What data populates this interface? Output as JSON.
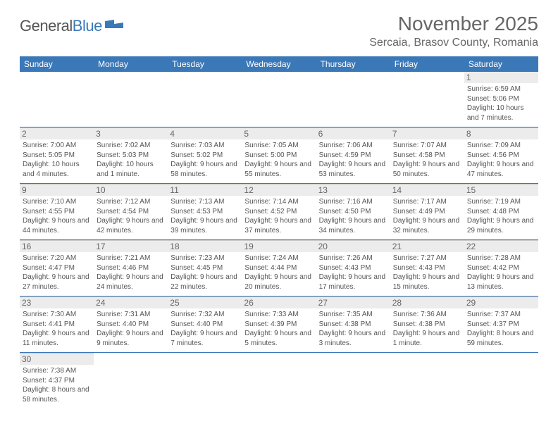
{
  "logo": {
    "text_part1": "General",
    "text_part2": "Blue"
  },
  "title": "November 2025",
  "location": "Sercaia, Brasov County, Romania",
  "colors": {
    "header_bg": "#3b78b8",
    "daynum_bg": "#ececec",
    "week_divider": "#3b78b8",
    "text": "#555555"
  },
  "weekdays": [
    "Sunday",
    "Monday",
    "Tuesday",
    "Wednesday",
    "Thursday",
    "Friday",
    "Saturday"
  ],
  "weeks": [
    [
      null,
      null,
      null,
      null,
      null,
      null,
      {
        "n": "1",
        "sunrise": "6:59 AM",
        "sunset": "5:06 PM",
        "daylight": "10 hours and 7 minutes."
      }
    ],
    [
      {
        "n": "2",
        "sunrise": "7:00 AM",
        "sunset": "5:05 PM",
        "daylight": "10 hours and 4 minutes."
      },
      {
        "n": "3",
        "sunrise": "7:02 AM",
        "sunset": "5:03 PM",
        "daylight": "10 hours and 1 minute."
      },
      {
        "n": "4",
        "sunrise": "7:03 AM",
        "sunset": "5:02 PM",
        "daylight": "9 hours and 58 minutes."
      },
      {
        "n": "5",
        "sunrise": "7:05 AM",
        "sunset": "5:00 PM",
        "daylight": "9 hours and 55 minutes."
      },
      {
        "n": "6",
        "sunrise": "7:06 AM",
        "sunset": "4:59 PM",
        "daylight": "9 hours and 53 minutes."
      },
      {
        "n": "7",
        "sunrise": "7:07 AM",
        "sunset": "4:58 PM",
        "daylight": "9 hours and 50 minutes."
      },
      {
        "n": "8",
        "sunrise": "7:09 AM",
        "sunset": "4:56 PM",
        "daylight": "9 hours and 47 minutes."
      }
    ],
    [
      {
        "n": "9",
        "sunrise": "7:10 AM",
        "sunset": "4:55 PM",
        "daylight": "9 hours and 44 minutes."
      },
      {
        "n": "10",
        "sunrise": "7:12 AM",
        "sunset": "4:54 PM",
        "daylight": "9 hours and 42 minutes."
      },
      {
        "n": "11",
        "sunrise": "7:13 AM",
        "sunset": "4:53 PM",
        "daylight": "9 hours and 39 minutes."
      },
      {
        "n": "12",
        "sunrise": "7:14 AM",
        "sunset": "4:52 PM",
        "daylight": "9 hours and 37 minutes."
      },
      {
        "n": "13",
        "sunrise": "7:16 AM",
        "sunset": "4:50 PM",
        "daylight": "9 hours and 34 minutes."
      },
      {
        "n": "14",
        "sunrise": "7:17 AM",
        "sunset": "4:49 PM",
        "daylight": "9 hours and 32 minutes."
      },
      {
        "n": "15",
        "sunrise": "7:19 AM",
        "sunset": "4:48 PM",
        "daylight": "9 hours and 29 minutes."
      }
    ],
    [
      {
        "n": "16",
        "sunrise": "7:20 AM",
        "sunset": "4:47 PM",
        "daylight": "9 hours and 27 minutes."
      },
      {
        "n": "17",
        "sunrise": "7:21 AM",
        "sunset": "4:46 PM",
        "daylight": "9 hours and 24 minutes."
      },
      {
        "n": "18",
        "sunrise": "7:23 AM",
        "sunset": "4:45 PM",
        "daylight": "9 hours and 22 minutes."
      },
      {
        "n": "19",
        "sunrise": "7:24 AM",
        "sunset": "4:44 PM",
        "daylight": "9 hours and 20 minutes."
      },
      {
        "n": "20",
        "sunrise": "7:26 AM",
        "sunset": "4:43 PM",
        "daylight": "9 hours and 17 minutes."
      },
      {
        "n": "21",
        "sunrise": "7:27 AM",
        "sunset": "4:43 PM",
        "daylight": "9 hours and 15 minutes."
      },
      {
        "n": "22",
        "sunrise": "7:28 AM",
        "sunset": "4:42 PM",
        "daylight": "9 hours and 13 minutes."
      }
    ],
    [
      {
        "n": "23",
        "sunrise": "7:30 AM",
        "sunset": "4:41 PM",
        "daylight": "9 hours and 11 minutes."
      },
      {
        "n": "24",
        "sunrise": "7:31 AM",
        "sunset": "4:40 PM",
        "daylight": "9 hours and 9 minutes."
      },
      {
        "n": "25",
        "sunrise": "7:32 AM",
        "sunset": "4:40 PM",
        "daylight": "9 hours and 7 minutes."
      },
      {
        "n": "26",
        "sunrise": "7:33 AM",
        "sunset": "4:39 PM",
        "daylight": "9 hours and 5 minutes."
      },
      {
        "n": "27",
        "sunrise": "7:35 AM",
        "sunset": "4:38 PM",
        "daylight": "9 hours and 3 minutes."
      },
      {
        "n": "28",
        "sunrise": "7:36 AM",
        "sunset": "4:38 PM",
        "daylight": "9 hours and 1 minute."
      },
      {
        "n": "29",
        "sunrise": "7:37 AM",
        "sunset": "4:37 PM",
        "daylight": "8 hours and 59 minutes."
      }
    ],
    [
      {
        "n": "30",
        "sunrise": "7:38 AM",
        "sunset": "4:37 PM",
        "daylight": "8 hours and 58 minutes."
      },
      null,
      null,
      null,
      null,
      null,
      null
    ]
  ],
  "labels": {
    "sunrise": "Sunrise:",
    "sunset": "Sunset:",
    "daylight": "Daylight:"
  }
}
